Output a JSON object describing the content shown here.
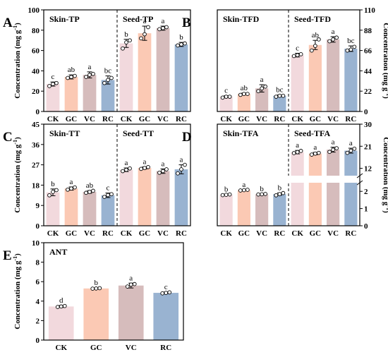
{
  "figure": {
    "colors": {
      "CK": "#f2d9dd",
      "GC": "#fbc9b4",
      "VC": "#d6bcbc",
      "RC": "#99b3d1"
    }
  },
  "chart_data": [
    {
      "panel": "A",
      "type": "bar",
      "ylabel": "Concentration (mg g⁻¹)",
      "ylabel_side": "left",
      "ylim": [
        0,
        100
      ],
      "yticks": [
        0,
        20,
        40,
        60,
        80,
        100
      ],
      "categories": [
        "CK",
        "GC",
        "VC",
        "RC"
      ],
      "groups": [
        {
          "name": "Skin-TP",
          "values": [
            27,
            34,
            36,
            31
          ],
          "errors": [
            2,
            2,
            3,
            4
          ],
          "letters": [
            "c",
            "ab",
            "a",
            "bc"
          ],
          "points": [
            [
              25,
              27,
              28
            ],
            [
              33,
              34,
              35
            ],
            [
              34,
              36,
              37
            ],
            [
              28,
              31,
              33
            ]
          ]
        },
        {
          "name": "Seed-TP",
          "values": [
            67,
            77,
            82,
            66
          ],
          "errors": [
            4,
            7,
            2,
            2
          ],
          "letters": [
            "b",
            "a",
            "a",
            "b"
          ],
          "points": [
            [
              62,
              68,
              70
            ],
            [
              72,
              76,
              83
            ],
            [
              81,
              82,
              83
            ],
            [
              65,
              66,
              67
            ]
          ]
        }
      ]
    },
    {
      "panel": "B",
      "type": "bar",
      "ylabel": "Concentration (mg g⁻¹)",
      "ylabel_side": "right",
      "ylim": [
        0,
        110
      ],
      "yticks": [
        0,
        22,
        44,
        66,
        88,
        110
      ],
      "categories": [
        "CK",
        "GC",
        "VC",
        "RC"
      ],
      "groups": [
        {
          "name": "Skin-TFD",
          "values": [
            16,
            19,
            25,
            17
          ],
          "errors": [
            1,
            1,
            4,
            1
          ],
          "letters": [
            "c",
            "ab",
            "a",
            "bc"
          ],
          "points": [
            [
              15,
              16,
              16
            ],
            [
              18,
              19,
              19
            ],
            [
              22,
              25,
              27
            ],
            [
              16,
              17,
              17
            ]
          ]
        },
        {
          "name": "Seed-TFD",
          "values": [
            61,
            72,
            78,
            68
          ],
          "errors": [
            2,
            5,
            3,
            3
          ],
          "letters": [
            "c",
            "ab",
            "a",
            "bc"
          ],
          "points": [
            [
              60,
              61,
              62
            ],
            [
              66,
              71,
              78
            ],
            [
              76,
              78,
              80
            ],
            [
              66,
              67,
              70
            ]
          ]
        }
      ]
    },
    {
      "panel": "C",
      "type": "bar",
      "ylabel": "Concentration (mg g⁻¹)",
      "ylabel_side": "left",
      "ylim": [
        0,
        45
      ],
      "yticks": [
        0,
        9,
        18,
        27,
        36,
        45
      ],
      "categories": [
        "CK",
        "GC",
        "VC",
        "RC"
      ],
      "groups": [
        {
          "name": "Skin-TT",
          "values": [
            14.8,
            16.5,
            15.0,
            13.5
          ],
          "errors": [
            1.5,
            0.7,
            0.6,
            1.0
          ],
          "letters": [
            "b",
            "a",
            "ab",
            "c"
          ],
          "points": [
            [
              13.5,
              15,
              15.8
            ],
            [
              16,
              16.5,
              17
            ],
            [
              14.6,
              15,
              15.5
            ],
            [
              12.8,
              13.6,
              14
            ]
          ]
        },
        {
          "name": "Seed-TT",
          "values": [
            24.8,
            25.6,
            24.2,
            25.0
          ],
          "errors": [
            0.8,
            0.5,
            1.0,
            2.0
          ],
          "letters": [
            "a",
            "a",
            "a",
            "a"
          ],
          "points": [
            [
              24.2,
              24.8,
              25.4
            ],
            [
              25.2,
              25.6,
              26
            ],
            [
              23.5,
              24.2,
              25
            ],
            [
              23.2,
              25,
              27
            ]
          ]
        }
      ]
    },
    {
      "panel": "D",
      "type": "bar",
      "ylabel": "Concentration (mg g⁻¹)",
      "ylabel_side": "right",
      "broken_axis": true,
      "ylim_lower": [
        0,
        2.5
      ],
      "yticks_lower": [
        0,
        1,
        2
      ],
      "ylim_upper": [
        9,
        30
      ],
      "yticks_upper": [
        12,
        21,
        30
      ],
      "categories": [
        "CK",
        "GC",
        "VC",
        "RC"
      ],
      "groups": [
        {
          "name": "Skin-TFA",
          "values": [
            1.8,
            2.07,
            1.83,
            1.84
          ],
          "errors": [
            0.02,
            0.02,
            0.02,
            0.07
          ],
          "letters": [
            "b",
            "a",
            "b",
            "b"
          ],
          "points": [
            [
              1.78,
              1.8,
              1.82
            ],
            [
              2.05,
              2.07,
              2.09
            ],
            [
              1.82,
              1.83,
              1.85
            ],
            [
              1.77,
              1.84,
              1.9
            ]
          ]
        },
        {
          "name": "Seed-TFA",
          "values": [
            18.6,
            18.0,
            19.6,
            19.2
          ],
          "errors": [
            0.7,
            0.5,
            1.0,
            1.0
          ],
          "letters": [
            "a",
            "a",
            "a",
            "a"
          ],
          "points": [
            [
              18.2,
              18.6,
              19.1
            ],
            [
              17.6,
              18,
              18.3
            ],
            [
              18.7,
              19.6,
              20.2
            ],
            [
              18.3,
              19.2,
              20
            ]
          ]
        }
      ]
    },
    {
      "panel": "E",
      "type": "bar",
      "ylabel": "Concentration (mg g⁻¹)",
      "ylabel_side": "left",
      "ylim": [
        0,
        10
      ],
      "yticks": [
        0,
        2,
        4,
        6,
        8,
        10
      ],
      "categories": [
        "CK",
        "GC",
        "VC",
        "RC"
      ],
      "groups": [
        {
          "name": "ANT",
          "values": [
            3.45,
            5.3,
            5.6,
            4.85
          ],
          "errors": [
            0.1,
            0.05,
            0.25,
            0.08
          ],
          "letters": [
            "d",
            "b",
            "a",
            "c"
          ],
          "points": [
            [
              3.4,
              3.45,
              3.5
            ],
            [
              5.28,
              5.3,
              5.33
            ],
            [
              5.5,
              5.7,
              5.75
            ],
            [
              4.8,
              4.85,
              4.9
            ]
          ]
        }
      ]
    }
  ]
}
